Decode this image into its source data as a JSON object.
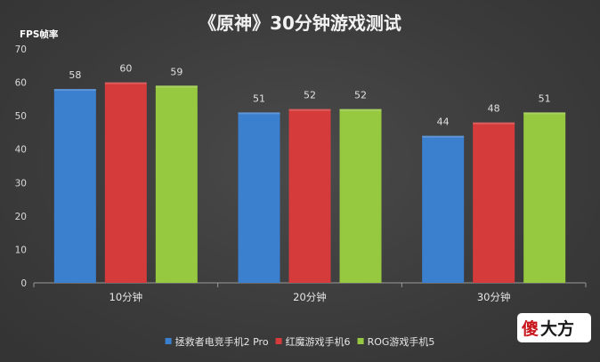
{
  "chart_data": {
    "type": "bar",
    "title": "《原神》30分钟游戏测试",
    "ylabel": "FPS帧率",
    "xlabel": "",
    "ylim": [
      0,
      70
    ],
    "yticks": [
      0,
      10,
      20,
      30,
      40,
      50,
      60,
      70
    ],
    "grid": false,
    "legend_position": "bottom-center",
    "categories": [
      "10分钟",
      "20分钟",
      "30分钟"
    ],
    "series": [
      {
        "name": "拯救者电竞手机2 Pro",
        "values": [
          58,
          51,
          44
        ],
        "color": "#3b7fcf"
      },
      {
        "name": "红魔游戏手机6",
        "values": [
          60,
          52,
          48
        ],
        "color": "#d63b3b"
      },
      {
        "name": "ROG游戏手机5",
        "values": [
          59,
          52,
          51
        ],
        "color": "#97c940"
      }
    ]
  },
  "watermark": {
    "text_a": "傻",
    "text_b": "大方"
  }
}
